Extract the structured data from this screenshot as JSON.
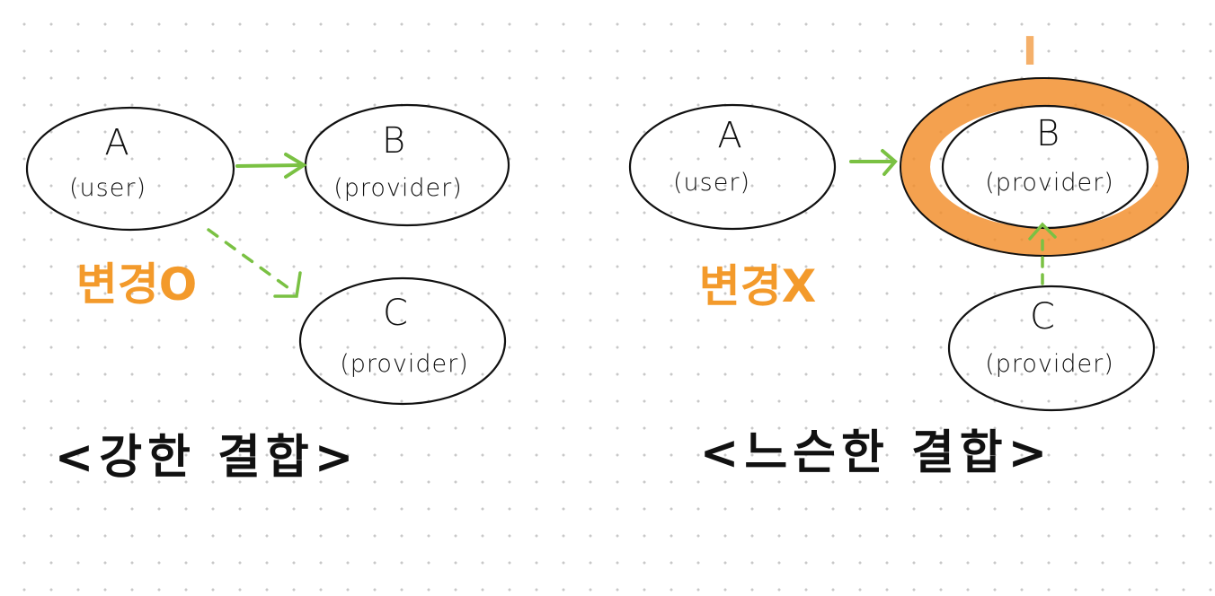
{
  "colors": {
    "ink": "#111111",
    "arrow": "#7ac143",
    "highlight": "#f28c28",
    "note": "#f39a2b"
  },
  "left": {
    "nodes": {
      "a": {
        "letter": "A",
        "role": "(user)"
      },
      "b": {
        "letter": "B",
        "role": "(provider)"
      },
      "c": {
        "letter": "C",
        "role": "(provider)"
      }
    },
    "note": "변경O",
    "caption": "<강한 결합>"
  },
  "right": {
    "interface_label": "I",
    "nodes": {
      "a": {
        "letter": "A",
        "role": "(user)"
      },
      "b": {
        "letter": "B",
        "role": "(provider)"
      },
      "c": {
        "letter": "C",
        "role": "(provider)"
      }
    },
    "note": "변경X",
    "caption": "<느슨한 결합>"
  }
}
